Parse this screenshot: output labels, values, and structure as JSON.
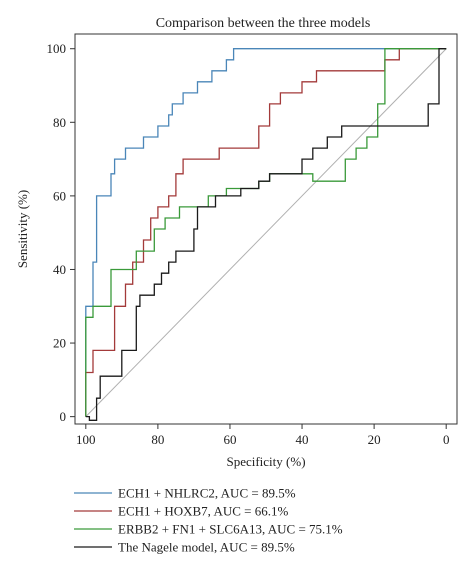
{
  "chart_data": {
    "type": "line",
    "title": "Comparison between the three models",
    "xlabel": "Specificity (%)",
    "ylabel": "Sensitivity (%)",
    "x_reversed": true,
    "xlim": [
      103,
      -3
    ],
    "ylim": [
      -2,
      104
    ],
    "x_ticks": [
      "100",
      "80",
      "60",
      "40",
      "20",
      "0"
    ],
    "y_ticks": [
      "0",
      "20",
      "40",
      "60",
      "80",
      "100"
    ],
    "x_tick_values": [
      100,
      80,
      60,
      40,
      20,
      0
    ],
    "y_tick_values": [
      0,
      20,
      40,
      60,
      80,
      100
    ],
    "grid": false,
    "legend_position": "below-plot",
    "reference_line": {
      "from": [
        100,
        0
      ],
      "to": [
        0,
        100
      ],
      "color": "#b0b0b0"
    },
    "series": [
      {
        "name": "ECH1 + NHLRC2, AUC = 89.5%",
        "color": "#4a86b8",
        "points": [
          [
            100,
            0
          ],
          [
            100,
            30
          ],
          [
            98,
            30
          ],
          [
            98,
            42
          ],
          [
            97,
            42
          ],
          [
            97,
            60
          ],
          [
            93,
            60
          ],
          [
            93,
            66
          ],
          [
            92,
            66
          ],
          [
            92,
            70
          ],
          [
            89,
            70
          ],
          [
            89,
            73
          ],
          [
            84,
            73
          ],
          [
            84,
            76
          ],
          [
            80,
            76
          ],
          [
            80,
            79
          ],
          [
            77,
            79
          ],
          [
            77,
            82
          ],
          [
            76,
            82
          ],
          [
            76,
            85
          ],
          [
            73,
            85
          ],
          [
            73,
            88
          ],
          [
            69,
            88
          ],
          [
            69,
            91
          ],
          [
            65,
            91
          ],
          [
            65,
            94
          ],
          [
            61,
            94
          ],
          [
            61,
            97
          ],
          [
            59,
            97
          ],
          [
            59,
            100
          ],
          [
            17,
            100
          ],
          [
            17,
            100
          ],
          [
            0,
            100
          ]
        ]
      },
      {
        "name": "ECH1 + HOXB7, AUC = 66.1%",
        "color": "#a33a3a",
        "points": [
          [
            100,
            0
          ],
          [
            100,
            12
          ],
          [
            98,
            12
          ],
          [
            98,
            18
          ],
          [
            92,
            18
          ],
          [
            92,
            30
          ],
          [
            89,
            30
          ],
          [
            89,
            36
          ],
          [
            87,
            36
          ],
          [
            87,
            42
          ],
          [
            84,
            42
          ],
          [
            84,
            48
          ],
          [
            82,
            48
          ],
          [
            82,
            54
          ],
          [
            80,
            54
          ],
          [
            80,
            57
          ],
          [
            77,
            57
          ],
          [
            77,
            60
          ],
          [
            75,
            60
          ],
          [
            75,
            66
          ],
          [
            73,
            66
          ],
          [
            73,
            70
          ],
          [
            63,
            70
          ],
          [
            63,
            73
          ],
          [
            52,
            73
          ],
          [
            52,
            79
          ],
          [
            49,
            79
          ],
          [
            49,
            85
          ],
          [
            46,
            85
          ],
          [
            46,
            88
          ],
          [
            40,
            88
          ],
          [
            40,
            91
          ],
          [
            36,
            91
          ],
          [
            36,
            94
          ],
          [
            17,
            94
          ],
          [
            17,
            97
          ],
          [
            13,
            97
          ],
          [
            13,
            100
          ],
          [
            0,
            100
          ]
        ]
      },
      {
        "name": "ERBB2 + FN1 + SLC6A13, AUC = 75.1%",
        "color": "#3a9a3a",
        "points": [
          [
            100,
            0
          ],
          [
            100,
            27
          ],
          [
            98,
            27
          ],
          [
            98,
            30
          ],
          [
            93,
            30
          ],
          [
            93,
            40
          ],
          [
            86,
            40
          ],
          [
            86,
            45
          ],
          [
            81,
            45
          ],
          [
            81,
            51
          ],
          [
            78,
            51
          ],
          [
            78,
            54
          ],
          [
            74,
            54
          ],
          [
            74,
            57
          ],
          [
            66,
            57
          ],
          [
            66,
            60
          ],
          [
            61,
            60
          ],
          [
            61,
            62
          ],
          [
            52,
            62
          ],
          [
            52,
            64
          ],
          [
            49,
            64
          ],
          [
            49,
            66
          ],
          [
            37,
            66
          ],
          [
            37,
            64
          ],
          [
            28,
            64
          ],
          [
            28,
            70
          ],
          [
            25,
            70
          ],
          [
            25,
            73
          ],
          [
            22,
            73
          ],
          [
            22,
            76
          ],
          [
            19,
            76
          ],
          [
            19,
            85
          ],
          [
            17,
            85
          ],
          [
            17,
            100
          ],
          [
            0,
            100
          ]
        ]
      },
      {
        "name": "The Nagele model, AUC = 89.5%",
        "color": "#1a1a1a",
        "points": [
          [
            100,
            0
          ],
          [
            99,
            0
          ],
          [
            99,
            -1
          ],
          [
            97,
            -1
          ],
          [
            97,
            5
          ],
          [
            96,
            5
          ],
          [
            96,
            11
          ],
          [
            90,
            11
          ],
          [
            90,
            18
          ],
          [
            86,
            18
          ],
          [
            86,
            30
          ],
          [
            85,
            30
          ],
          [
            85,
            33
          ],
          [
            81,
            33
          ],
          [
            81,
            36
          ],
          [
            79,
            36
          ],
          [
            79,
            39
          ],
          [
            77,
            39
          ],
          [
            77,
            42
          ],
          [
            75,
            42
          ],
          [
            75,
            45
          ],
          [
            70,
            45
          ],
          [
            70,
            51
          ],
          [
            69,
            51
          ],
          [
            69,
            57
          ],
          [
            64,
            57
          ],
          [
            64,
            60
          ],
          [
            57,
            60
          ],
          [
            57,
            62
          ],
          [
            52,
            62
          ],
          [
            52,
            64
          ],
          [
            49,
            64
          ],
          [
            49,
            66
          ],
          [
            40,
            66
          ],
          [
            40,
            70
          ],
          [
            37,
            70
          ],
          [
            37,
            73
          ],
          [
            33,
            73
          ],
          [
            33,
            76
          ],
          [
            29,
            76
          ],
          [
            29,
            79
          ],
          [
            5,
            79
          ],
          [
            5,
            85
          ],
          [
            2,
            85
          ],
          [
            2,
            100
          ],
          [
            0,
            100
          ]
        ]
      }
    ]
  }
}
